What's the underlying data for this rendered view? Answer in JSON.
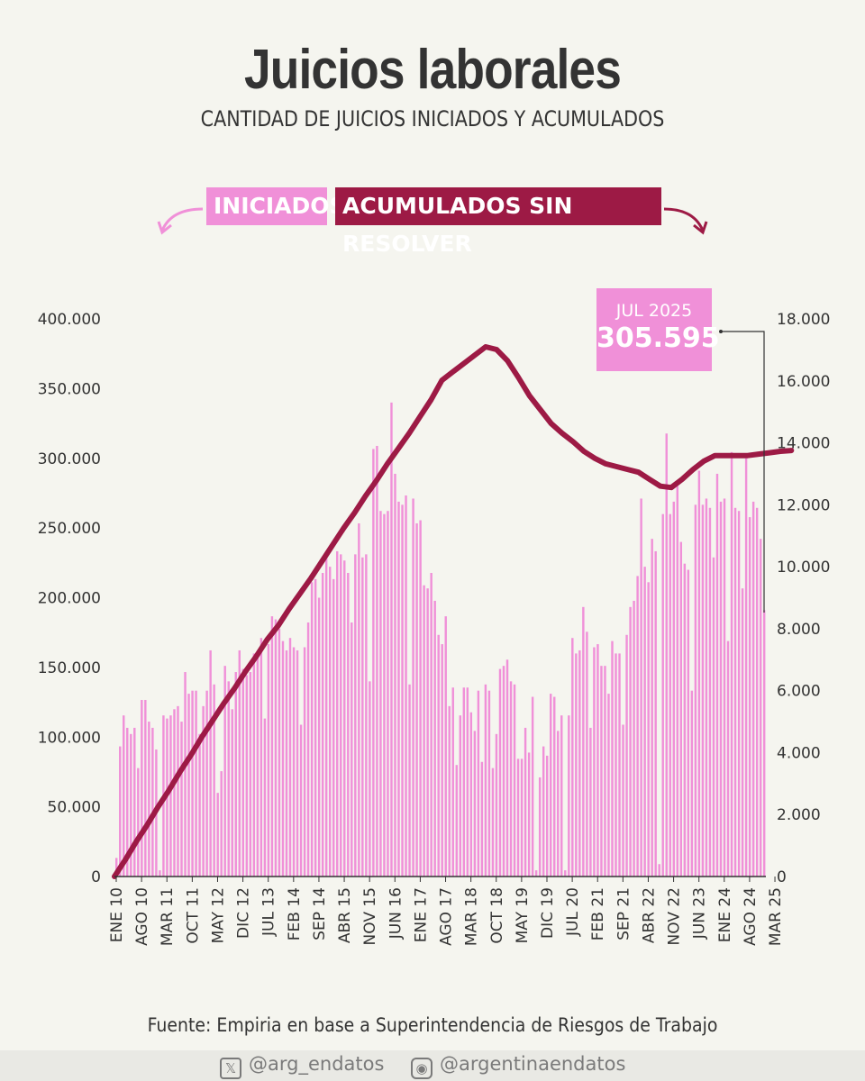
{
  "title": "Juicios laborales",
  "subtitle": "CANTIDAD DE JUICIOS INICIADOS Y ACUMULADOS",
  "legend": {
    "iniciados": "INICIADOS",
    "acumulados": "ACUMULADOS SIN RESOLVER"
  },
  "callout": {
    "label": "JUL 2025",
    "value": "305.595"
  },
  "source": "Fuente: Empiria en base a Superintendencia de Riesgos de Trabajo",
  "footer": {
    "x_handle": "@arg_endatos",
    "ig_handle": "@argentinaendatos",
    "x_icon": "x-logo-icon",
    "ig_icon": "instagram-icon"
  },
  "colors": {
    "bars": "#f090d8",
    "line": "#9d1a45",
    "background": "#f5f5ef"
  },
  "chart_data": {
    "type": "bar+line",
    "left_axis": {
      "label": "Acumulados sin resolver",
      "ylim": [
        0,
        400000
      ],
      "ticks": [
        "0",
        "50.000",
        "100.000",
        "150.000",
        "200.000",
        "250.000",
        "300.000",
        "350.000",
        "400.000"
      ]
    },
    "right_axis": {
      "label": "Iniciados",
      "ylim": [
        0,
        18000
      ],
      "ticks": [
        "0",
        "2.000",
        "4.000",
        "6.000",
        "8.000",
        "10.000",
        "12.000",
        "14.000",
        "16.000",
        "18.000"
      ]
    },
    "x_tick_labels": [
      "ENE 10",
      "AGO 10",
      "MAR 11",
      "OCT 11",
      "MAY 12",
      "DIC 12",
      "JUL 13",
      "FEB 14",
      "SEP 14",
      "ABR 15",
      "NOV 15",
      "JUN 16",
      "ENE 17",
      "AGO 17",
      "MAR 18",
      "OCT 18",
      "MAY 19",
      "DIC 19",
      "JUL 20",
      "FEB 21",
      "SEP 21",
      "ABR 22",
      "NOV 22",
      "JUN 23",
      "ENE 24",
      "AGO 24",
      "MAR 25"
    ],
    "period": {
      "start": "ENE 2010",
      "end": "JUL 2025",
      "frequency": "monthly"
    },
    "series": [
      {
        "name": "INICIADOS",
        "type": "bar",
        "axis": "right",
        "values": [
          600,
          4200,
          5200,
          4800,
          4600,
          4800,
          3500,
          5700,
          5700,
          5000,
          4800,
          4100,
          200,
          5200,
          5100,
          5200,
          5400,
          5500,
          5000,
          6600,
          5900,
          6000,
          6000,
          4600,
          5500,
          6000,
          7300,
          6200,
          2700,
          3400,
          6800,
          6300,
          5400,
          6600,
          7300,
          6700,
          6500,
          6600,
          7200,
          7200,
          7700,
          5100,
          7500,
          8400,
          8300,
          8000,
          7600,
          7300,
          7700,
          7400,
          7300,
          4900,
          7400,
          8200,
          9500,
          9600,
          9000,
          9800,
          10300,
          10000,
          9600,
          10500,
          10400,
          10200,
          9800,
          8200,
          10400,
          11400,
          10300,
          10400,
          6300,
          13800,
          13900,
          11800,
          11700,
          11800,
          15300,
          13000,
          12100,
          12000,
          12300,
          6200,
          12200,
          11400,
          11500,
          9400,
          9300,
          9800,
          8900,
          7800,
          7500,
          8400,
          5500,
          6100,
          3600,
          5200,
          6100,
          6100,
          5300,
          4700,
          6000,
          3700,
          6200,
          6000,
          3500,
          4600,
          6700,
          6800,
          7000,
          6300,
          6200,
          3800,
          3800,
          4800,
          4000,
          5800,
          200,
          3200,
          4200,
          3900,
          5900,
          5800,
          4700,
          5200,
          200,
          5200,
          7700,
          7200,
          7300,
          8700,
          7900,
          4800,
          7400,
          7500,
          6800,
          6800,
          5900,
          7600,
          7200,
          7200,
          4900,
          7800,
          8700,
          8900,
          9700,
          12200,
          10000,
          9500,
          10900,
          10500,
          400,
          11700,
          14300,
          11700,
          12100,
          12600,
          10800,
          10100,
          9900,
          6000,
          12000,
          13100,
          12000,
          12200,
          11900,
          10300,
          13000,
          12100,
          12200,
          7600,
          13700,
          11900,
          11800,
          9300,
          13500,
          11600,
          12100,
          11900,
          10900,
          8600
        ]
      },
      {
        "name": "ACUMULADOS SIN RESOLVER",
        "type": "line",
        "axis": "left",
        "values": [
          [
            0,
            0
          ],
          [
            3,
            12000
          ],
          [
            6,
            25000
          ],
          [
            9,
            37000
          ],
          [
            12,
            50000
          ],
          [
            15,
            62000
          ],
          [
            18,
            75000
          ],
          [
            21,
            87000
          ],
          [
            24,
            100000
          ],
          [
            27,
            112000
          ],
          [
            30,
            124000
          ],
          [
            33,
            135000
          ],
          [
            36,
            147000
          ],
          [
            39,
            158000
          ],
          [
            42,
            170000
          ],
          [
            45,
            180000
          ],
          [
            48,
            192000
          ],
          [
            51,
            203000
          ],
          [
            54,
            214000
          ],
          [
            57,
            226000
          ],
          [
            60,
            238000
          ],
          [
            63,
            250000
          ],
          [
            66,
            261000
          ],
          [
            69,
            273000
          ],
          [
            72,
            284000
          ],
          [
            75,
            296000
          ],
          [
            78,
            307000
          ],
          [
            81,
            318000
          ],
          [
            84,
            330000
          ],
          [
            87,
            342000
          ],
          [
            90,
            356000
          ],
          [
            93,
            362000
          ],
          [
            96,
            368000
          ],
          [
            99,
            374000
          ],
          [
            102,
            380000
          ],
          [
            105,
            378000
          ],
          [
            108,
            370000
          ],
          [
            111,
            358000
          ],
          [
            114,
            345000
          ],
          [
            117,
            335000
          ],
          [
            120,
            325000
          ],
          [
            123,
            318000
          ],
          [
            126,
            312000
          ],
          [
            129,
            305000
          ],
          [
            132,
            300000
          ],
          [
            135,
            296000
          ],
          [
            138,
            294000
          ],
          [
            141,
            292000
          ],
          [
            144,
            290000
          ],
          [
            147,
            285000
          ],
          [
            150,
            280000
          ],
          [
            153,
            279000
          ],
          [
            156,
            285000
          ],
          [
            159,
            292000
          ],
          [
            162,
            298000
          ],
          [
            165,
            302000
          ],
          [
            168,
            302000
          ],
          [
            171,
            302000
          ],
          [
            174,
            302000
          ],
          [
            177,
            303000
          ],
          [
            180,
            304000
          ],
          [
            183,
            305000
          ],
          [
            186,
            305595
          ]
        ]
      }
    ]
  }
}
